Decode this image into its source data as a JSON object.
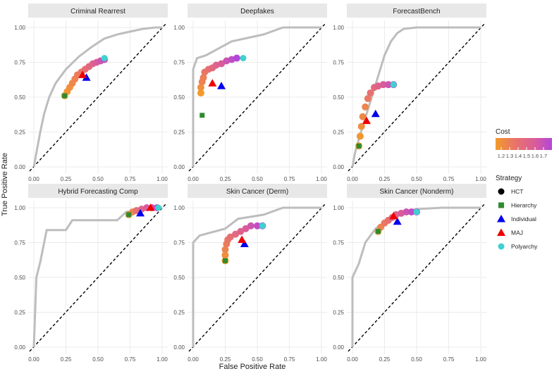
{
  "chart_data": {
    "type": "scatter",
    "xlabel": "False Positive Rate",
    "ylabel": "True Positive Rate",
    "xlim": [
      0,
      1
    ],
    "ylim": [
      0,
      1
    ],
    "x_ticks": [
      "0.00",
      "0.25",
      "0.50",
      "0.75",
      "1.00"
    ],
    "y_ticks": [
      "0.00",
      "0.25",
      "0.50",
      "0.75",
      "1.00"
    ],
    "legend": {
      "cost_title": "Cost",
      "cost_ticks": [
        "1.2",
        "1.3",
        "1.4",
        "1.5",
        "1.6",
        "1.7"
      ],
      "cost_colors": [
        "#f39a2b",
        "#e8736a",
        "#d95c9a",
        "#b247d9"
      ],
      "strategy_title": "Strategy",
      "strategies": [
        {
          "name": "HCT",
          "shape": "circle",
          "color": "#000000"
        },
        {
          "name": "Hierarchy",
          "shape": "square",
          "color": "#2e8b2e"
        },
        {
          "name": "Individual",
          "shape": "triangle",
          "color": "#0000ee"
        },
        {
          "name": "MAJ",
          "shape": "triangle",
          "color": "#ee0000"
        },
        {
          "name": "Polyarchy",
          "shape": "circle",
          "color": "#40d0d0"
        }
      ]
    },
    "panels": [
      {
        "title": "Criminal Rearrest",
        "roc": [
          [
            0,
            0
          ],
          [
            0.02,
            0.1
          ],
          [
            0.05,
            0.25
          ],
          [
            0.08,
            0.38
          ],
          [
            0.12,
            0.5
          ],
          [
            0.17,
            0.6
          ],
          [
            0.25,
            0.7
          ],
          [
            0.35,
            0.79
          ],
          [
            0.45,
            0.86
          ],
          [
            0.55,
            0.92
          ],
          [
            0.65,
            0.95
          ],
          [
            0.75,
            0.97
          ],
          [
            0.85,
            0.99
          ],
          [
            0.95,
            1.0
          ],
          [
            1,
            1
          ]
        ],
        "hct": [
          [
            0.24,
            0.51
          ],
          [
            0.26,
            0.54
          ],
          [
            0.28,
            0.57
          ],
          [
            0.3,
            0.6
          ],
          [
            0.32,
            0.63
          ],
          [
            0.34,
            0.66
          ],
          [
            0.37,
            0.68
          ],
          [
            0.4,
            0.7
          ],
          [
            0.43,
            0.72
          ],
          [
            0.46,
            0.74
          ],
          [
            0.49,
            0.75
          ],
          [
            0.52,
            0.76
          ],
          [
            0.55,
            0.77
          ]
        ],
        "hct_cost": [
          1.2,
          1.22,
          1.25,
          1.28,
          1.3,
          1.33,
          1.36,
          1.4,
          1.45,
          1.5,
          1.55,
          1.6,
          1.65
        ],
        "hierarchy": [
          0.24,
          0.51
        ],
        "individual": [
          0.41,
          0.64
        ],
        "maj": [
          0.38,
          0.66
        ],
        "polyarchy": [
          0.55,
          0.78
        ]
      },
      {
        "title": "Deepfakes",
        "roc": [
          [
            0,
            0
          ],
          [
            0,
            0.7
          ],
          [
            0.03,
            0.78
          ],
          [
            0.1,
            0.8
          ],
          [
            0.2,
            0.85
          ],
          [
            0.3,
            0.9
          ],
          [
            0.55,
            0.95
          ],
          [
            0.7,
            1.0
          ],
          [
            1,
            1
          ]
        ],
        "hct": [
          [
            0.06,
            0.53
          ],
          [
            0.06,
            0.57
          ],
          [
            0.07,
            0.61
          ],
          [
            0.08,
            0.64
          ],
          [
            0.09,
            0.68
          ],
          [
            0.12,
            0.7
          ],
          [
            0.15,
            0.71
          ],
          [
            0.18,
            0.73
          ],
          [
            0.22,
            0.74
          ],
          [
            0.26,
            0.76
          ],
          [
            0.3,
            0.77
          ],
          [
            0.34,
            0.78
          ]
        ],
        "hct_cost": [
          1.2,
          1.25,
          1.3,
          1.32,
          1.36,
          1.4,
          1.45,
          1.5,
          1.55,
          1.6,
          1.65,
          1.7
        ],
        "hierarchy": [
          0.07,
          0.37
        ],
        "individual": [
          0.22,
          0.58
        ],
        "maj": [
          0.15,
          0.6
        ],
        "polyarchy": [
          0.39,
          0.78
        ]
      },
      {
        "title": "ForecastBench",
        "roc": [
          [
            0,
            0
          ],
          [
            0.02,
            0.1
          ],
          [
            0.05,
            0.2
          ],
          [
            0.1,
            0.35
          ],
          [
            0.15,
            0.5
          ],
          [
            0.2,
            0.65
          ],
          [
            0.25,
            0.8
          ],
          [
            0.3,
            0.9
          ],
          [
            0.35,
            0.96
          ],
          [
            0.4,
            0.99
          ],
          [
            0.5,
            1.0
          ],
          [
            1,
            1
          ]
        ],
        "hct": [
          [
            0.05,
            0.15
          ],
          [
            0.06,
            0.22
          ],
          [
            0.07,
            0.29
          ],
          [
            0.08,
            0.36
          ],
          [
            0.1,
            0.43
          ],
          [
            0.12,
            0.49
          ],
          [
            0.14,
            0.53
          ],
          [
            0.17,
            0.57
          ],
          [
            0.2,
            0.58
          ],
          [
            0.24,
            0.59
          ],
          [
            0.28,
            0.59
          ],
          [
            0.32,
            0.59
          ]
        ],
        "hct_cost": [
          1.2,
          1.22,
          1.25,
          1.28,
          1.3,
          1.35,
          1.4,
          1.45,
          1.5,
          1.55,
          1.6,
          1.65
        ],
        "hierarchy": [
          0.05,
          0.15
        ],
        "individual": [
          0.18,
          0.38
        ],
        "maj": [
          0.11,
          0.33
        ],
        "polyarchy": [
          0.32,
          0.59
        ]
      },
      {
        "title": "Hybrid Forecasting Comp",
        "roc": [
          [
            0,
            0
          ],
          [
            0.02,
            0.5
          ],
          [
            0.05,
            0.61
          ],
          [
            0.1,
            0.84
          ],
          [
            0.25,
            0.84
          ],
          [
            0.3,
            0.91
          ],
          [
            0.65,
            0.91
          ],
          [
            0.72,
            0.97
          ],
          [
            1,
            1
          ]
        ],
        "hct": [
          [
            0.74,
            0.95
          ],
          [
            0.77,
            0.97
          ],
          [
            0.8,
            0.98
          ],
          [
            0.84,
            0.99
          ],
          [
            0.88,
            1.0
          ],
          [
            0.92,
            1.0
          ],
          [
            0.96,
            1.0
          ]
        ],
        "hct_cost": [
          1.2,
          1.3,
          1.4,
          1.5,
          1.55,
          1.6,
          1.65
        ],
        "hierarchy": [
          0.74,
          0.95
        ],
        "individual": [
          0.83,
          0.96
        ],
        "maj": [
          0.91,
          1.0
        ],
        "polyarchy": [
          0.97,
          1.0
        ]
      },
      {
        "title": "Skin Cancer (Derm)",
        "roc": [
          [
            0,
            0
          ],
          [
            0,
            0.75
          ],
          [
            0.05,
            0.8
          ],
          [
            0.25,
            0.85
          ],
          [
            0.35,
            0.92
          ],
          [
            0.55,
            0.95
          ],
          [
            0.7,
            1.0
          ],
          [
            1,
            1
          ]
        ],
        "hct": [
          [
            0.25,
            0.62
          ],
          [
            0.25,
            0.66
          ],
          [
            0.25,
            0.7
          ],
          [
            0.26,
            0.74
          ],
          [
            0.27,
            0.77
          ],
          [
            0.29,
            0.79
          ],
          [
            0.33,
            0.81
          ],
          [
            0.37,
            0.83
          ],
          [
            0.41,
            0.85
          ],
          [
            0.45,
            0.87
          ],
          [
            0.5,
            0.87
          ],
          [
            0.54,
            0.87
          ]
        ],
        "hct_cost": [
          1.2,
          1.25,
          1.3,
          1.33,
          1.36,
          1.4,
          1.45,
          1.5,
          1.55,
          1.6,
          1.65,
          1.7
        ],
        "hierarchy": [
          0.25,
          0.62
        ],
        "individual": [
          0.4,
          0.74
        ],
        "maj": [
          0.38,
          0.77
        ],
        "polyarchy": [
          0.54,
          0.87
        ]
      },
      {
        "title": "Skin Cancer (Nonderm)",
        "roc": [
          [
            0,
            0
          ],
          [
            0,
            0.5
          ],
          [
            0.05,
            0.6
          ],
          [
            0.1,
            0.75
          ],
          [
            0.18,
            0.85
          ],
          [
            0.3,
            0.93
          ],
          [
            0.4,
            0.97
          ],
          [
            0.5,
            0.99
          ],
          [
            0.7,
            1.0
          ],
          [
            1,
            1
          ]
        ],
        "hct": [
          [
            0.2,
            0.83
          ],
          [
            0.22,
            0.86
          ],
          [
            0.25,
            0.89
          ],
          [
            0.28,
            0.91
          ],
          [
            0.31,
            0.93
          ],
          [
            0.34,
            0.95
          ],
          [
            0.38,
            0.96
          ],
          [
            0.42,
            0.97
          ],
          [
            0.46,
            0.97
          ],
          [
            0.5,
            0.97
          ]
        ],
        "hct_cost": [
          1.2,
          1.3,
          1.35,
          1.4,
          1.45,
          1.5,
          1.55,
          1.6,
          1.65,
          1.7
        ],
        "hierarchy": [
          0.2,
          0.83
        ],
        "individual": [
          0.35,
          0.9
        ],
        "maj": [
          0.32,
          0.94
        ],
        "polyarchy": [
          0.5,
          0.97
        ]
      }
    ]
  }
}
